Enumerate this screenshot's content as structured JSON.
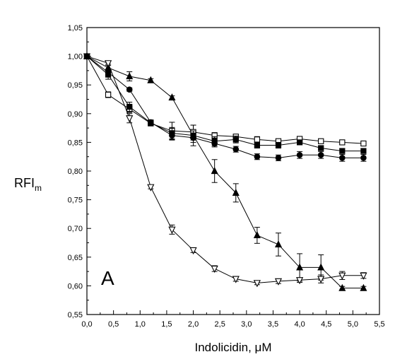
{
  "chart_data": {
    "type": "line",
    "title": "",
    "xlabel": "Indolicidin, μM",
    "ylabel": "RFI",
    "ylabel_subscript": "m",
    "panel_label": "A",
    "xlim": [
      0.0,
      5.5
    ],
    "ylim": [
      0.55,
      1.05
    ],
    "xticks": [
      "0,0",
      "0,5",
      "1,0",
      "1,5",
      "2,0",
      "2,5",
      "3,0",
      "3,5",
      "4,0",
      "4,5",
      "5,0",
      "5,5"
    ],
    "yticks": [
      "0,55",
      "0,60",
      "0,65",
      "0,70",
      "0,75",
      "0,80",
      "0,85",
      "0,90",
      "0,95",
      "1,00",
      "1,05"
    ],
    "grid": false,
    "legend": "none",
    "series": [
      {
        "marker": "filled-triangle",
        "x": [
          0.0,
          0.4,
          0.8,
          1.2,
          1.6,
          2.0,
          2.4,
          2.8,
          3.2,
          3.6,
          4.0,
          4.4,
          4.8,
          5.2
        ],
        "y": [
          1.0,
          0.98,
          0.965,
          0.958,
          0.928,
          0.862,
          0.8,
          0.762,
          0.688,
          0.672,
          0.632,
          0.632,
          0.596,
          0.596
        ],
        "err": [
          0.0,
          0.006,
          0.008,
          0.003,
          0.003,
          0.018,
          0.02,
          0.016,
          0.014,
          0.02,
          0.024,
          0.022,
          0.003,
          0.003
        ]
      },
      {
        "marker": "open-triangle-down",
        "x": [
          0.0,
          0.4,
          0.8,
          1.2,
          1.6,
          2.0,
          2.4,
          2.8,
          3.2,
          3.6,
          4.0,
          4.4,
          4.8,
          5.2
        ],
        "y": [
          1.0,
          0.988,
          0.892,
          0.772,
          0.698,
          0.662,
          0.63,
          0.612,
          0.605,
          0.608,
          0.61,
          0.612,
          0.618,
          0.618
        ],
        "err": [
          0.0,
          0.004,
          0.008,
          0.003,
          0.008,
          0.004,
          0.005,
          0.004,
          0.003,
          0.004,
          0.004,
          0.007,
          0.007,
          0.005
        ]
      },
      {
        "marker": "open-square",
        "x": [
          0.0,
          0.4,
          0.8,
          1.2,
          1.6,
          2.0,
          2.4,
          2.8,
          3.2,
          3.6,
          4.0,
          4.4,
          4.8,
          5.2
        ],
        "y": [
          1.0,
          0.933,
          0.908,
          0.883,
          0.87,
          0.868,
          0.862,
          0.86,
          0.855,
          0.852,
          0.856,
          0.852,
          0.85,
          0.848
        ],
        "err": [
          0.0,
          0.005,
          0.006,
          0.004,
          0.015,
          0.012,
          0.005,
          0.004,
          0.005,
          0.004,
          0.003,
          0.003,
          0.003,
          0.003
        ]
      },
      {
        "marker": "filled-square",
        "x": [
          0.0,
          0.4,
          0.8,
          1.2,
          1.6,
          2.0,
          2.4,
          2.8,
          3.2,
          3.6,
          4.0,
          4.4,
          4.8,
          5.2
        ],
        "y": [
          1.0,
          0.968,
          0.912,
          0.884,
          0.866,
          0.862,
          0.852,
          0.855,
          0.845,
          0.845,
          0.85,
          0.84,
          0.835,
          0.835
        ],
        "err": [
          0.0,
          0.008,
          0.008,
          0.005,
          0.01,
          0.008,
          0.008,
          0.006,
          0.005,
          0.005,
          0.004,
          0.004,
          0.004,
          0.004
        ]
      },
      {
        "marker": "filled-circle",
        "x": [
          0.0,
          0.4,
          0.8,
          1.2,
          1.6,
          2.0,
          2.4,
          2.8,
          3.2,
          3.6,
          4.0,
          4.4,
          4.8,
          5.2
        ],
        "y": [
          1.0,
          0.972,
          0.942,
          0.885,
          0.862,
          0.858,
          0.848,
          0.838,
          0.825,
          0.823,
          0.828,
          0.828,
          0.823,
          0.823
        ],
        "err": [
          0.0,
          0.004,
          0.003,
          0.004,
          0.008,
          0.008,
          0.006,
          0.005,
          0.005,
          0.005,
          0.006,
          0.006,
          0.006,
          0.006
        ]
      }
    ]
  }
}
